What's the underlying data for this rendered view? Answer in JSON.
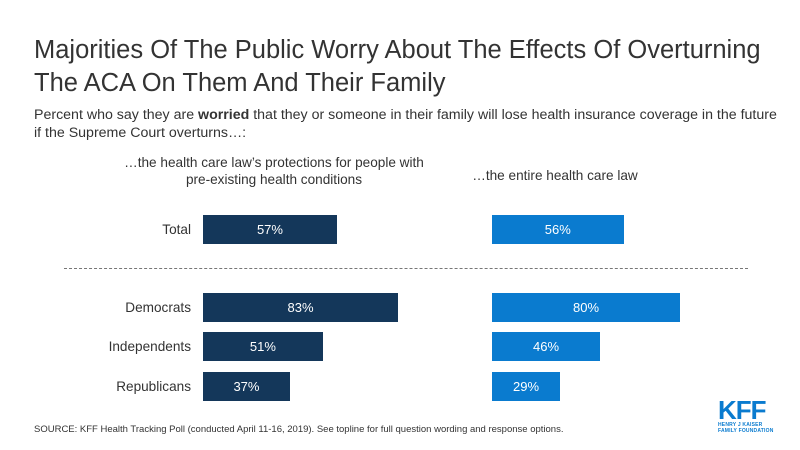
{
  "title": "Majorities Of The Public Worry About The Effects Of Overturning The ACA On Them And Their Family",
  "subtitle": {
    "before": "Percent who say they are ",
    "bold": "worried",
    "after": " that they or someone in their family will lose health insurance coverage in the future if the Supreme Court overturns…:"
  },
  "chart_data": [
    {
      "type": "bar",
      "title": "…the health care law’s protections for people with pre-existing health conditions",
      "categories": [
        "Total",
        "Democrats",
        "Independents",
        "Republicans"
      ],
      "values": [
        57,
        83,
        51,
        37
      ],
      "value_labels": [
        "57%",
        "83%",
        "51%",
        "37%"
      ],
      "color": "#14375a",
      "xlim": [
        0,
        100
      ]
    },
    {
      "type": "bar",
      "title": "…the entire health care law",
      "categories": [
        "Total",
        "Democrats",
        "Independents",
        "Republicans"
      ],
      "values": [
        56,
        80,
        46,
        29
      ],
      "value_labels": [
        "56%",
        "80%",
        "46%",
        "29%"
      ],
      "color": "#0a7bcf",
      "xlim": [
        0,
        100
      ]
    }
  ],
  "source": "SOURCE: KFF Health Tracking Poll (conducted April 11-16, 2019). See topline for full question wording and response options.",
  "logo": {
    "mark": "KFF",
    "sub_line1": "HENRY J KAISER",
    "sub_line2": "FAMILY FOUNDATION"
  },
  "colors": {
    "left_bar": "#14375a",
    "right_bar": "#0a7bcf",
    "brand": "#0a7bcf"
  }
}
